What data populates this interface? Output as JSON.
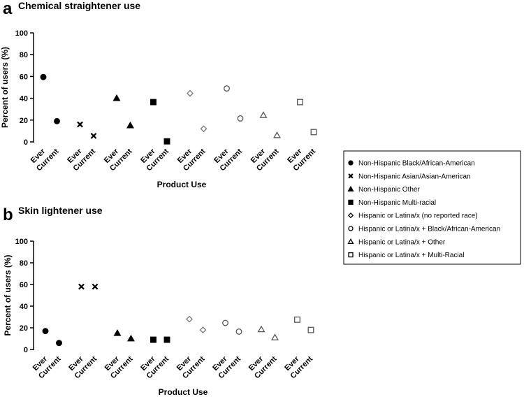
{
  "chart_data": [
    {
      "type": "scatter",
      "panel": "a",
      "title": "Chemical straightener use",
      "xlabel": "Product Use",
      "ylabel": "Percent of users (%)",
      "ylim": [
        0,
        100
      ],
      "yticks": [
        0,
        20,
        40,
        60,
        80,
        100
      ],
      "categories": [
        "Ever",
        "Current",
        "Ever",
        "Current",
        "Ever",
        "Current",
        "Ever",
        "Current",
        "Ever",
        "Current",
        "Ever",
        "Current",
        "Ever",
        "Current",
        "Ever",
        "Current"
      ],
      "series": [
        {
          "name": "Non-Hispanic Black/African-American",
          "values": [
            59.5,
            19
          ]
        },
        {
          "name": "Non-Hispanic Asian/Asian-American",
          "values": [
            16,
            5.5
          ]
        },
        {
          "name": "Non-Hispanic Other",
          "values": [
            40,
            15
          ]
        },
        {
          "name": "Non-Hispanic Multi-racial",
          "values": [
            36.5,
            0.5
          ]
        },
        {
          "name": "Hispanic or Latina/x (no reported race)",
          "values": [
            44.5,
            12
          ]
        },
        {
          "name": "Hispanic or Latina/x + Black/African-American",
          "values": [
            49,
            21.5
          ]
        },
        {
          "name": "Hispanic or Latina/x + Other",
          "values": [
            24.5,
            6
          ]
        },
        {
          "name": "Hispanic or Latina/x + Multi-Racial",
          "values": [
            36.5,
            9
          ]
        }
      ]
    },
    {
      "type": "scatter",
      "panel": "b",
      "title": "Skin lightener use",
      "xlabel": "Product Use",
      "ylabel": "Percent of users (%)",
      "ylim": [
        0,
        100
      ],
      "yticks": [
        0,
        20,
        40,
        60,
        80,
        100
      ],
      "categories": [
        "Ever",
        "Current",
        "Ever",
        "Current",
        "Ever",
        "Current",
        "Ever",
        "Current",
        "Ever",
        "Current",
        "Ever",
        "Current",
        "Ever",
        "Current",
        "Ever",
        "Current"
      ],
      "series": [
        {
          "name": "Non-Hispanic Black/African-American",
          "values": [
            17,
            6
          ]
        },
        {
          "name": "Non-Hispanic Asian/Asian-American",
          "values": [
            58,
            58
          ]
        },
        {
          "name": "Non-Hispanic Other",
          "values": [
            15,
            10
          ]
        },
        {
          "name": "Non-Hispanic Multi-racial",
          "values": [
            9,
            9
          ]
        },
        {
          "name": "Hispanic or Latina/x (no reported race)",
          "values": [
            28,
            18
          ]
        },
        {
          "name": "Hispanic or Latina/x + Black/African-American",
          "values": [
            24.5,
            16.5
          ]
        },
        {
          "name": "Hispanic or Latina/x + Other",
          "values": [
            18.5,
            11
          ]
        },
        {
          "name": "Hispanic or Latina/x + Multi-Racial",
          "values": [
            27.5,
            18
          ]
        }
      ]
    }
  ],
  "legend": {
    "items": [
      {
        "marker": "circle-filled",
        "label": "Non-Hispanic Black/African-American"
      },
      {
        "marker": "cross",
        "label": "Non-Hispanic Asian/Asian-American"
      },
      {
        "marker": "triangle-filled",
        "label": "Non-Hispanic Other"
      },
      {
        "marker": "square-filled",
        "label": "Non-Hispanic Multi-racial"
      },
      {
        "marker": "diamond-open",
        "label": "Hispanic or Latina/x (no reported race)"
      },
      {
        "marker": "circle-open",
        "label": "Hispanic or Latina/x + Black/African-American"
      },
      {
        "marker": "triangle-open",
        "label": "Hispanic or Latina/x + Other"
      },
      {
        "marker": "square-open",
        "label": "Hispanic or Latina/x + Multi-Racial"
      }
    ]
  },
  "colors": {
    "ink": "#000000",
    "gray_marker": "#555555",
    "light_marker": "#8a8a8a"
  }
}
